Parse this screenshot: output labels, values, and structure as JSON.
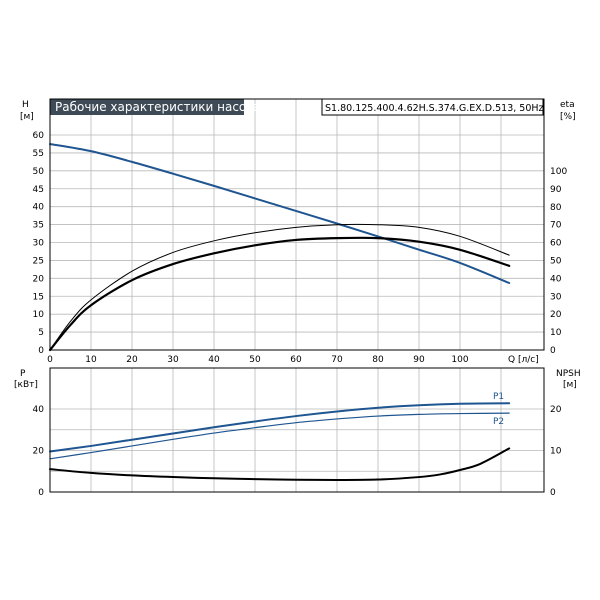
{
  "colors": {
    "blue": "#1f5590",
    "black": "#000000",
    "grid": "#b9b9b9",
    "title_bg": "#3f4a57"
  },
  "chart_data": [
    {
      "type": "line",
      "title": "Рабочие характеристики насоса",
      "model": "S1.80.125.400.4.62H.S.374.G.EX.D.513, 50Hz",
      "xlabel": "Q [л/с]",
      "ylabel": [
        "H",
        "[м]"
      ],
      "ylabel_right": [
        "eta",
        "[%]"
      ],
      "xlim": [
        0,
        112
      ],
      "ylim": [
        0,
        63
      ],
      "ylim_right": [
        0,
        126
      ],
      "x_ticks": [
        0,
        10,
        20,
        30,
        40,
        50,
        60,
        70,
        80,
        90,
        100
      ],
      "y_ticks": [
        0,
        5,
        10,
        15,
        20,
        25,
        30,
        35,
        40,
        45,
        50,
        55,
        60
      ],
      "y_ticks_right": [
        0,
        10,
        20,
        30,
        40,
        50,
        60,
        70,
        80,
        90,
        100
      ],
      "grid": true,
      "series": [
        {
          "axis": "left",
          "color": "#1f5590",
          "width": 2,
          "x": [
            0,
            10,
            20,
            30,
            40,
            50,
            60,
            70,
            80,
            90,
            100,
            112
          ],
          "y": [
            57.5,
            55.5,
            52.5,
            49.2,
            45.8,
            42.3,
            38.8,
            35.3,
            31.7,
            28.0,
            24.3,
            18.7
          ]
        },
        {
          "axis": "right",
          "color": "#000000",
          "width": 1,
          "x": [
            0,
            5,
            10,
            20,
            30,
            40,
            50,
            60,
            70,
            80,
            90,
            100,
            112
          ],
          "y": [
            0,
            16,
            28,
            44,
            54.5,
            61,
            65.5,
            68.5,
            70,
            70,
            68.5,
            63.5,
            53
          ]
        },
        {
          "axis": "right",
          "color": "#000000",
          "width": 2.2,
          "x": [
            0,
            5,
            10,
            20,
            30,
            40,
            50,
            60,
            70,
            80,
            90,
            100,
            112
          ],
          "y": [
            0,
            14,
            25,
            39,
            48,
            54,
            58.5,
            61.5,
            62.5,
            62.5,
            60.5,
            56,
            47
          ]
        }
      ]
    },
    {
      "type": "line",
      "ylabel": [
        "P",
        "[кВт]"
      ],
      "ylabel_right": [
        "NPSH",
        "[м]"
      ],
      "xlim": [
        0,
        112
      ],
      "ylim": [
        0,
        50
      ],
      "ylim_right": [
        0,
        25
      ],
      "y_ticks": [
        0,
        20,
        40
      ],
      "y_ticks_right": [
        0,
        10,
        20
      ],
      "grid": true,
      "series": [
        {
          "name": "P1",
          "axis": "left",
          "color": "#1f5590",
          "width": 2,
          "x": [
            0,
            10,
            20,
            30,
            40,
            50,
            60,
            70,
            80,
            90,
            100,
            112
          ],
          "y": [
            19.5,
            22.2,
            25.2,
            28.2,
            31.2,
            34.0,
            36.6,
            38.8,
            40.6,
            41.8,
            42.5,
            42.8
          ]
        },
        {
          "name": "P2",
          "axis": "left",
          "color": "#1f5590",
          "width": 1.2,
          "x": [
            0,
            10,
            20,
            30,
            40,
            50,
            60,
            70,
            80,
            90,
            100,
            112
          ],
          "y": [
            16,
            19,
            22.2,
            25.4,
            28.4,
            31,
            33.4,
            35.2,
            36.6,
            37.4,
            37.8,
            38.0
          ]
        },
        {
          "axis": "right",
          "color": "#000000",
          "width": 2,
          "x": [
            0,
            10,
            20,
            30,
            40,
            50,
            60,
            70,
            80,
            90,
            95,
            100,
            105,
            112
          ],
          "y": [
            5.5,
            4.6,
            4.0,
            3.6,
            3.3,
            3.1,
            2.95,
            2.9,
            3.0,
            3.6,
            4.2,
            5.3,
            6.8,
            10.5
          ]
        }
      ]
    }
  ]
}
